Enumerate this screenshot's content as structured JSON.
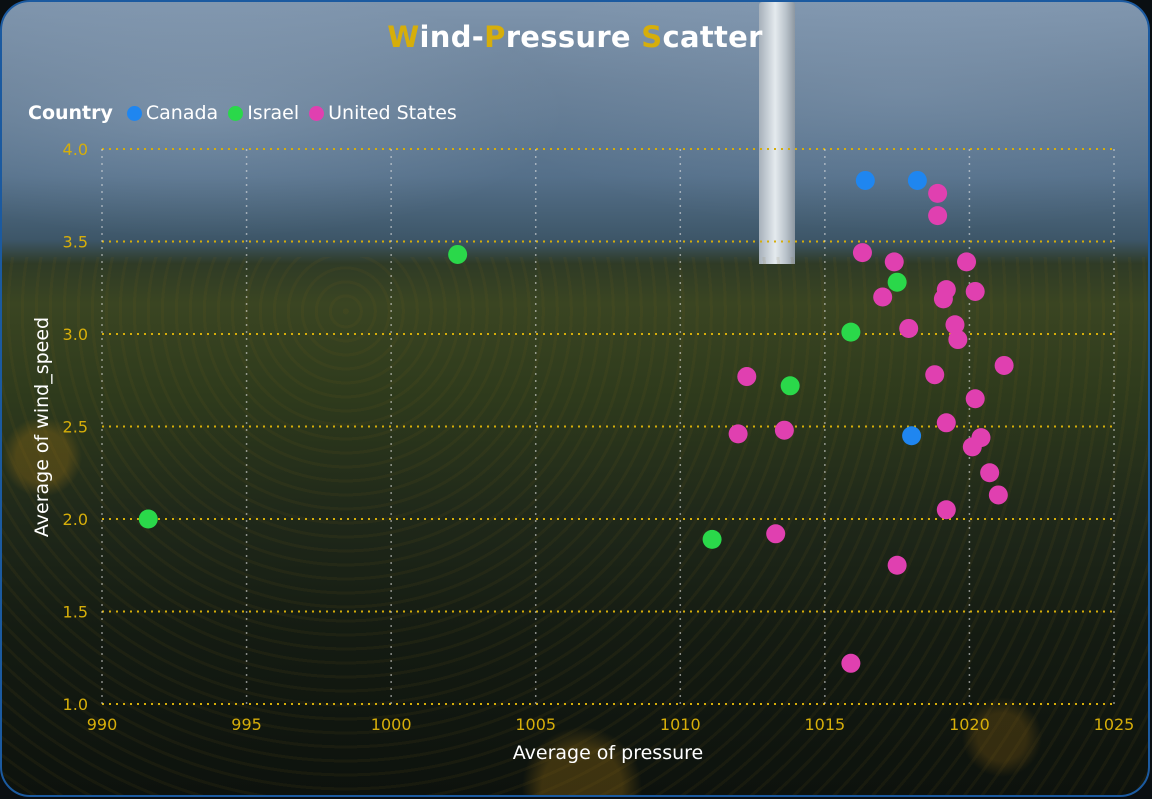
{
  "title": {
    "parts": [
      {
        "text": "W",
        "accent": true
      },
      {
        "text": "ind-",
        "accent": false
      },
      {
        "text": "P",
        "accent": true
      },
      {
        "text": "ressure ",
        "accent": false
      },
      {
        "text": "S",
        "accent": true
      },
      {
        "text": "catter",
        "accent": false
      }
    ]
  },
  "legend": {
    "title": "Country",
    "items": [
      {
        "label": "Canada",
        "color": "#1f86f0"
      },
      {
        "label": "Israel",
        "color": "#2ad84a"
      },
      {
        "label": "United States",
        "color": "#e040b0"
      }
    ]
  },
  "colors": {
    "accent": "#d6ae0a",
    "grid": "#d6ae0a",
    "text": "#ffffff"
  },
  "chart_data": {
    "type": "scatter",
    "title": "Wind-Pressure Scatter",
    "xlabel": "Average of pressure",
    "ylabel": "Average of wind_speed",
    "xlim": [
      990,
      1025
    ],
    "ylim": [
      1.0,
      4.0
    ],
    "x_ticks": [
      "990",
      "995",
      "1000",
      "1005",
      "1010",
      "1015",
      "1020",
      "1025"
    ],
    "y_ticks": [
      "1.0",
      "1.5",
      "2.0",
      "2.5",
      "3.0",
      "3.5",
      "4.0"
    ],
    "grid": true,
    "legend_position": "top-left",
    "series": [
      {
        "name": "Canada",
        "color": "#1f86f0",
        "points": [
          [
            1016.4,
            3.83
          ],
          [
            1018.2,
            3.83
          ],
          [
            1018.0,
            2.45
          ]
        ]
      },
      {
        "name": "Israel",
        "color": "#2ad84a",
        "points": [
          [
            991.6,
            2.0
          ],
          [
            1002.3,
            3.43
          ],
          [
            1011.1,
            1.89
          ],
          [
            1013.8,
            2.72
          ],
          [
            1015.9,
            3.01
          ],
          [
            1017.5,
            3.28
          ]
        ]
      },
      {
        "name": "United States",
        "color": "#e040b0",
        "points": [
          [
            1018.9,
            3.76
          ],
          [
            1018.9,
            3.64
          ],
          [
            1016.3,
            3.44
          ],
          [
            1017.4,
            3.39
          ],
          [
            1019.9,
            3.39
          ],
          [
            1017.0,
            3.2
          ],
          [
            1019.2,
            3.24
          ],
          [
            1019.1,
            3.19
          ],
          [
            1020.2,
            3.23
          ],
          [
            1017.9,
            3.03
          ],
          [
            1019.5,
            3.05
          ],
          [
            1019.6,
            2.97
          ],
          [
            1012.3,
            2.77
          ],
          [
            1018.8,
            2.78
          ],
          [
            1021.2,
            2.83
          ],
          [
            1020.2,
            2.65
          ],
          [
            1012.0,
            2.46
          ],
          [
            1013.6,
            2.48
          ],
          [
            1019.2,
            2.52
          ],
          [
            1020.4,
            2.44
          ],
          [
            1020.1,
            2.39
          ],
          [
            1020.7,
            2.25
          ],
          [
            1021.0,
            2.13
          ],
          [
            1019.2,
            2.05
          ],
          [
            1013.3,
            1.92
          ],
          [
            1017.5,
            1.75
          ],
          [
            1015.9,
            1.22
          ]
        ]
      }
    ]
  }
}
